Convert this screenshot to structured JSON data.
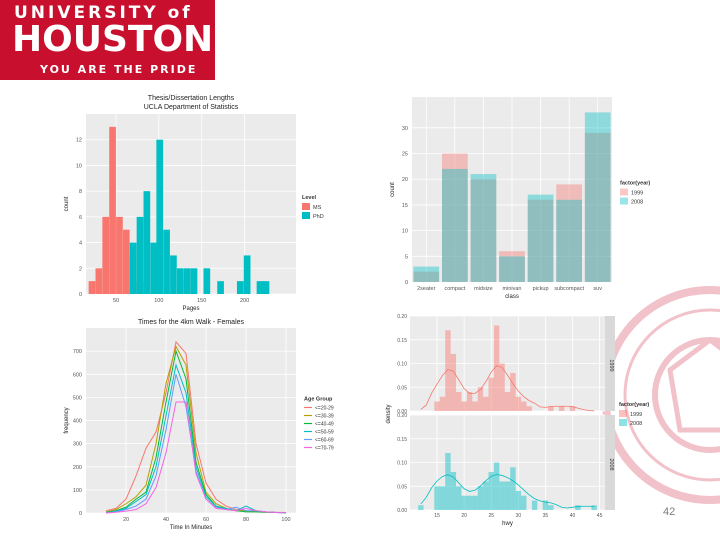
{
  "logo": {
    "line1": "UNIVERSITY of",
    "line2": "HOUSTON",
    "line3": "YOU ARE THE PRIDE"
  },
  "page_number": "42",
  "colors": {
    "brand": "#c8102e",
    "red": "#f8766d",
    "teal": "#00bfc4"
  },
  "chart_data": [
    {
      "type": "bar",
      "title": "Thesis/Dissertation Lengths",
      "subtitle": "UCLA Department of Statistics",
      "xlabel": "Pages",
      "ylabel": "count",
      "xlim": [
        15,
        260
      ],
      "ylim": [
        0,
        14
      ],
      "xticks": [
        50,
        100,
        150,
        200
      ],
      "yticks": [
        0,
        2,
        4,
        6,
        8,
        10,
        12
      ],
      "legend_title": "Level",
      "legend": [
        "MS",
        "PhD"
      ],
      "bin_width": 7.8,
      "series": [
        {
          "name": "MS",
          "color": "#f8766d",
          "bins": [
            {
              "x": 22,
              "v": 1
            },
            {
              "x": 30,
              "v": 2
            },
            {
              "x": 38,
              "v": 6
            },
            {
              "x": 46,
              "v": 13
            },
            {
              "x": 54,
              "v": 6
            },
            {
              "x": 62,
              "v": 5
            },
            {
              "x": 70,
              "v": 3
            },
            {
              "x": 78,
              "v": 1
            },
            {
              "x": 86,
              "v": 0
            },
            {
              "x": 94,
              "v": 0
            },
            {
              "x": 101,
              "v": 0
            },
            {
              "x": 109,
              "v": 0
            },
            {
              "x": 117,
              "v": 0
            },
            {
              "x": 125,
              "v": 0
            },
            {
              "x": 133,
              "v": 1
            }
          ]
        },
        {
          "name": "PhD",
          "color": "#00bfc4",
          "bins": [
            {
              "x": 70,
              "v": 4
            },
            {
              "x": 78,
              "v": 6
            },
            {
              "x": 86,
              "v": 8
            },
            {
              "x": 94,
              "v": 4
            },
            {
              "x": 101,
              "v": 12
            },
            {
              "x": 109,
              "v": 5
            },
            {
              "x": 117,
              "v": 3
            },
            {
              "x": 125,
              "v": 2
            },
            {
              "x": 133,
              "v": 2
            },
            {
              "x": 141,
              "v": 2
            },
            {
              "x": 156,
              "v": 2
            },
            {
              "x": 172,
              "v": 1
            },
            {
              "x": 195,
              "v": 1
            },
            {
              "x": 203,
              "v": 3
            },
            {
              "x": 218,
              "v": 1
            },
            {
              "x": 225,
              "v": 1
            }
          ]
        }
      ]
    },
    {
      "type": "bar",
      "title": "",
      "xlabel": "class",
      "ylabel": "count",
      "ylim": [
        0,
        36
      ],
      "yticks": [
        0,
        5,
        10,
        15,
        20,
        25,
        30
      ],
      "categories": [
        "2seater",
        "compact",
        "midsize",
        "minivan",
        "pickup",
        "subcompact",
        "suv"
      ],
      "legend_title": "factor(year)",
      "legend": [
        "1999",
        "2008"
      ],
      "series": [
        {
          "name": "1999",
          "color": "#f8766d",
          "values": [
            2,
            25,
            20,
            6,
            16,
            19,
            29
          ]
        },
        {
          "name": "2008",
          "color": "#00bfc4",
          "values": [
            3,
            22,
            21,
            5,
            17,
            16,
            33
          ]
        }
      ]
    },
    {
      "type": "line",
      "title": "Times for the 4km Walk - Females",
      "xlabel": "Time In Minutes",
      "ylabel": "frequency",
      "xlim": [
        0,
        105
      ],
      "ylim": [
        0,
        800
      ],
      "xticks": [
        20,
        40,
        60,
        80,
        100
      ],
      "yticks": [
        0,
        100,
        200,
        300,
        400,
        500,
        600,
        700
      ],
      "legend_title": "Age Group",
      "legend": [
        "<=20-29",
        "<=30-39",
        "<=40-49",
        "<=50-59",
        "<=60-69",
        "<=70-79"
      ],
      "x": [
        10,
        15,
        20,
        25,
        30,
        35,
        40,
        45,
        50,
        55,
        60,
        65,
        70,
        75,
        80,
        85,
        90,
        95,
        100
      ],
      "series": [
        {
          "name": "<=20-29",
          "color": "#f8766d",
          "values": [
            10,
            20,
            60,
            160,
            280,
            350,
            520,
            740,
            690,
            300,
            130,
            60,
            30,
            15,
            10,
            5,
            5,
            3,
            2
          ]
        },
        {
          "name": "<=30-39",
          "color": "#b79f00",
          "values": [
            5,
            15,
            40,
            70,
            120,
            300,
            560,
            720,
            640,
            260,
            90,
            40,
            20,
            10,
            10,
            5,
            3,
            2,
            1
          ]
        },
        {
          "name": "<=40-49",
          "color": "#00ba38",
          "values": [
            3,
            10,
            25,
            60,
            90,
            240,
            480,
            700,
            580,
            220,
            80,
            30,
            15,
            10,
            5,
            5,
            3,
            2,
            1
          ]
        },
        {
          "name": "<=50-59",
          "color": "#00bfc4",
          "values": [
            2,
            8,
            20,
            50,
            80,
            200,
            420,
            640,
            520,
            200,
            70,
            30,
            20,
            10,
            30,
            10,
            5,
            2,
            1
          ]
        },
        {
          "name": "<=60-69",
          "color": "#619cff",
          "values": [
            1,
            5,
            15,
            30,
            60,
            160,
            360,
            600,
            460,
            180,
            60,
            25,
            15,
            25,
            10,
            10,
            5,
            2,
            1
          ]
        },
        {
          "name": "<=70-79",
          "color": "#f564e3",
          "values": [
            0,
            3,
            8,
            15,
            40,
            110,
            260,
            480,
            480,
            170,
            60,
            20,
            15,
            10,
            20,
            10,
            5,
            2,
            1
          ]
        }
      ]
    },
    {
      "type": "bar",
      "title": "",
      "xlabel": "hwy",
      "ylabel": "density",
      "xlim": [
        10,
        46
      ],
      "ylim": [
        0,
        0.2
      ],
      "xticks": [
        15,
        20,
        25,
        30,
        35,
        40,
        45
      ],
      "yticks": [
        0.0,
        0.05,
        0.1,
        0.15,
        0.2
      ],
      "legend_title": "factor(year)",
      "legend": [
        "1999",
        "2008"
      ],
      "facets": [
        {
          "label": "1999",
          "color": "#f8766d",
          "bins": [
            {
              "x": 15,
              "v": 0.02
            },
            {
              "x": 16,
              "v": 0.03
            },
            {
              "x": 17,
              "v": 0.17
            },
            {
              "x": 18,
              "v": 0.12
            },
            {
              "x": 19,
              "v": 0.04
            },
            {
              "x": 20,
              "v": 0.02
            },
            {
              "x": 21,
              "v": 0.04
            },
            {
              "x": 22,
              "v": 0.02
            },
            {
              "x": 23,
              "v": 0.05
            },
            {
              "x": 24,
              "v": 0.03
            },
            {
              "x": 25,
              "v": 0.07
            },
            {
              "x": 26,
              "v": 0.18
            },
            {
              "x": 27,
              "v": 0.1
            },
            {
              "x": 28,
              "v": 0.04
            },
            {
              "x": 29,
              "v": 0.08
            },
            {
              "x": 30,
              "v": 0.03
            },
            {
              "x": 31,
              "v": 0.02
            },
            {
              "x": 32,
              "v": 0.01
            },
            {
              "x": 36,
              "v": 0.01
            },
            {
              "x": 38,
              "v": 0.01
            },
            {
              "x": 40,
              "v": 0.01
            }
          ]
        },
        {
          "label": "2008",
          "color": "#00bfc4",
          "bins": [
            {
              "x": 12,
              "v": 0.01
            },
            {
              "x": 15,
              "v": 0.05
            },
            {
              "x": 16,
              "v": 0.05
            },
            {
              "x": 17,
              "v": 0.12
            },
            {
              "x": 18,
              "v": 0.08
            },
            {
              "x": 19,
              "v": 0.05
            },
            {
              "x": 20,
              "v": 0.03
            },
            {
              "x": 21,
              "v": 0.03
            },
            {
              "x": 22,
              "v": 0.03
            },
            {
              "x": 23,
              "v": 0.05
            },
            {
              "x": 24,
              "v": 0.06
            },
            {
              "x": 25,
              "v": 0.08
            },
            {
              "x": 26,
              "v": 0.1
            },
            {
              "x": 27,
              "v": 0.06
            },
            {
              "x": 28,
              "v": 0.06
            },
            {
              "x": 29,
              "v": 0.09
            },
            {
              "x": 30,
              "v": 0.04
            },
            {
              "x": 31,
              "v": 0.03
            },
            {
              "x": 33,
              "v": 0.02
            },
            {
              "x": 35,
              "v": 0.02
            },
            {
              "x": 36,
              "v": 0.01
            },
            {
              "x": 41,
              "v": 0.01
            },
            {
              "x": 44,
              "v": 0.01
            }
          ]
        }
      ]
    }
  ]
}
